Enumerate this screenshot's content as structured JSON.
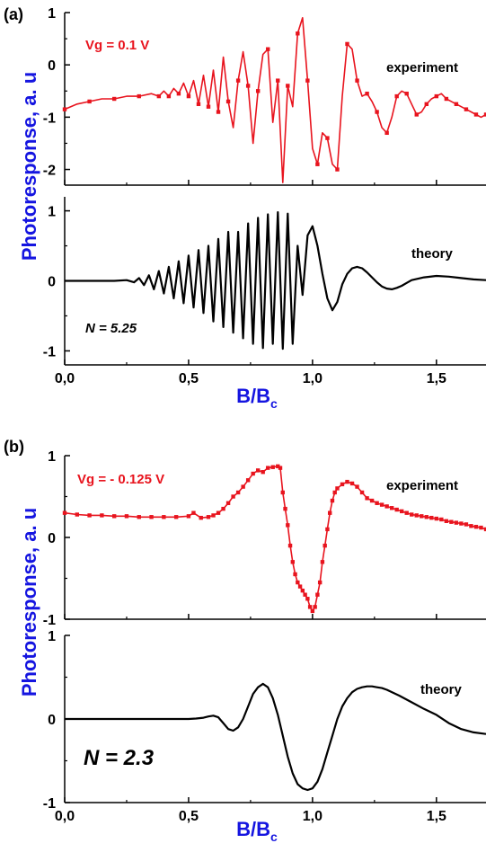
{
  "figure": {
    "ylabel": "Photoresponse, a. u",
    "xlabel_main": "B/B",
    "xlabel_sub": "c"
  },
  "colors": {
    "experiment": "#e8141e",
    "theory": "#000000",
    "axis_label": "#1515e0",
    "text": "#000000"
  },
  "chart_data": [
    {
      "id": "a-experiment",
      "type": "line",
      "panel_tag": "(a)",
      "label": "experiment",
      "annotation": "Vg = 0.1 V",
      "annotation_color": "#e8141e",
      "xlim": [
        0,
        1.7
      ],
      "ylim": [
        -2.3,
        1.0
      ],
      "y_ticks": [
        1,
        0,
        -1,
        -2
      ],
      "y_tick_labels": [
        "1",
        "0",
        "-1",
        "-2"
      ],
      "x_ticks": [
        0,
        0.5,
        1.0,
        1.5
      ],
      "show_x_tick_labels": false,
      "markers": true,
      "marker_step": 2,
      "series": [
        {
          "name": "experiment",
          "color": "#e8141e",
          "x": [
            0,
            0.05,
            0.1,
            0.15,
            0.2,
            0.25,
            0.3,
            0.35,
            0.38,
            0.4,
            0.42,
            0.44,
            0.46,
            0.48,
            0.5,
            0.52,
            0.54,
            0.56,
            0.58,
            0.6,
            0.62,
            0.64,
            0.66,
            0.68,
            0.7,
            0.72,
            0.74,
            0.76,
            0.78,
            0.8,
            0.82,
            0.84,
            0.86,
            0.88,
            0.9,
            0.92,
            0.94,
            0.96,
            0.98,
            1.0,
            1.02,
            1.04,
            1.06,
            1.08,
            1.1,
            1.12,
            1.14,
            1.16,
            1.18,
            1.2,
            1.22,
            1.24,
            1.26,
            1.28,
            1.3,
            1.32,
            1.34,
            1.36,
            1.38,
            1.4,
            1.42,
            1.44,
            1.46,
            1.48,
            1.5,
            1.52,
            1.54,
            1.56,
            1.58,
            1.6,
            1.62,
            1.64,
            1.66,
            1.68,
            1.7
          ],
          "y": [
            -0.85,
            -0.75,
            -0.7,
            -0.65,
            -0.65,
            -0.6,
            -0.6,
            -0.55,
            -0.6,
            -0.5,
            -0.6,
            -0.45,
            -0.55,
            -0.35,
            -0.6,
            -0.3,
            -0.75,
            -0.2,
            -0.8,
            -0.1,
            -0.9,
            0.15,
            -0.7,
            -1.2,
            -0.3,
            0.25,
            -0.4,
            -1.5,
            -0.5,
            0.2,
            0.3,
            -1.1,
            -0.3,
            -2.25,
            -0.4,
            -0.8,
            0.6,
            0.9,
            -0.3,
            -1.6,
            -1.9,
            -1.3,
            -1.4,
            -1.9,
            -2.0,
            -0.6,
            0.4,
            0.3,
            -0.3,
            -0.6,
            -0.55,
            -0.7,
            -0.9,
            -1.2,
            -1.3,
            -1.0,
            -0.6,
            -0.5,
            -0.55,
            -0.75,
            -0.95,
            -0.9,
            -0.75,
            -0.65,
            -0.6,
            -0.55,
            -0.65,
            -0.7,
            -0.75,
            -0.8,
            -0.85,
            -0.9,
            -0.95,
            -1.0,
            -0.95
          ]
        }
      ]
    },
    {
      "id": "a-theory",
      "type": "line",
      "label": "theory",
      "annotation": "N = 5.25",
      "annotation_color": "#000000",
      "xlim": [
        0,
        1.7
      ],
      "ylim": [
        -1.2,
        1.2
      ],
      "y_ticks": [
        1,
        0,
        -1
      ],
      "y_tick_labels": [
        "1",
        "0",
        "-1"
      ],
      "x_ticks": [
        0,
        0.5,
        1.0,
        1.5
      ],
      "x_tick_labels": [
        "0,0",
        "0,5",
        "1,0",
        "1,5"
      ],
      "show_x_tick_labels": true,
      "markers": false,
      "series": [
        {
          "name": "theory",
          "color": "#000000",
          "x": [
            0,
            0.05,
            0.1,
            0.15,
            0.2,
            0.25,
            0.28,
            0.3,
            0.32,
            0.34,
            0.36,
            0.38,
            0.4,
            0.42,
            0.44,
            0.46,
            0.48,
            0.5,
            0.52,
            0.54,
            0.56,
            0.58,
            0.6,
            0.62,
            0.64,
            0.66,
            0.68,
            0.7,
            0.72,
            0.74,
            0.76,
            0.78,
            0.8,
            0.82,
            0.84,
            0.86,
            0.88,
            0.9,
            0.92,
            0.94,
            0.96,
            0.98,
            1.0,
            1.02,
            1.04,
            1.06,
            1.08,
            1.1,
            1.12,
            1.14,
            1.16,
            1.18,
            1.2,
            1.22,
            1.24,
            1.26,
            1.28,
            1.3,
            1.32,
            1.34,
            1.36,
            1.38,
            1.4,
            1.45,
            1.5,
            1.55,
            1.6,
            1.65,
            1.7
          ],
          "y": [
            0,
            0,
            0,
            0,
            0,
            0.01,
            -0.02,
            0.04,
            -0.06,
            0.08,
            -0.12,
            0.14,
            -0.18,
            0.2,
            -0.25,
            0.28,
            -0.32,
            0.36,
            -0.38,
            0.44,
            -0.46,
            0.5,
            -0.58,
            0.6,
            -0.66,
            0.7,
            -0.74,
            0.7,
            -0.82,
            0.82,
            -0.9,
            0.9,
            -0.96,
            0.95,
            -0.9,
            0.98,
            -0.97,
            0.96,
            -0.9,
            0.5,
            -0.2,
            0.65,
            0.78,
            0.5,
            0.1,
            -0.25,
            -0.42,
            -0.3,
            -0.05,
            0.1,
            0.18,
            0.2,
            0.18,
            0.12,
            0.05,
            -0.02,
            -0.08,
            -0.11,
            -0.12,
            -0.1,
            -0.07,
            -0.03,
            0.01,
            0.05,
            0.07,
            0.06,
            0.04,
            0.02,
            0.01
          ]
        }
      ]
    },
    {
      "id": "b-experiment",
      "type": "line",
      "panel_tag": "(b)",
      "label": "experiment",
      "annotation": "Vg = - 0.125 V",
      "annotation_color": "#e8141e",
      "xlim": [
        0,
        1.7
      ],
      "ylim": [
        -1.0,
        1.0
      ],
      "y_ticks": [
        1,
        0,
        -1
      ],
      "y_tick_labels": [
        "1",
        "0",
        "-1"
      ],
      "x_ticks": [
        0,
        0.5,
        1.0,
        1.5
      ],
      "show_x_tick_labels": false,
      "markers": true,
      "marker_step": 1,
      "series": [
        {
          "name": "experiment",
          "color": "#e8141e",
          "x": [
            0,
            0.05,
            0.1,
            0.15,
            0.2,
            0.25,
            0.3,
            0.35,
            0.4,
            0.45,
            0.5,
            0.52,
            0.55,
            0.58,
            0.6,
            0.62,
            0.64,
            0.66,
            0.68,
            0.7,
            0.72,
            0.74,
            0.76,
            0.78,
            0.8,
            0.82,
            0.84,
            0.86,
            0.87,
            0.88,
            0.89,
            0.9,
            0.91,
            0.92,
            0.93,
            0.94,
            0.95,
            0.96,
            0.97,
            0.98,
            0.99,
            1.0,
            1.01,
            1.02,
            1.03,
            1.04,
            1.05,
            1.06,
            1.07,
            1.08,
            1.09,
            1.1,
            1.12,
            1.14,
            1.16,
            1.18,
            1.2,
            1.22,
            1.24,
            1.26,
            1.28,
            1.3,
            1.32,
            1.34,
            1.36,
            1.38,
            1.4,
            1.42,
            1.44,
            1.46,
            1.48,
            1.5,
            1.52,
            1.54,
            1.56,
            1.58,
            1.6,
            1.62,
            1.64,
            1.66,
            1.68,
            1.7
          ],
          "y": [
            0.3,
            0.28,
            0.27,
            0.27,
            0.26,
            0.26,
            0.25,
            0.25,
            0.25,
            0.25,
            0.26,
            0.3,
            0.24,
            0.25,
            0.27,
            0.3,
            0.35,
            0.42,
            0.5,
            0.55,
            0.62,
            0.7,
            0.78,
            0.82,
            0.8,
            0.85,
            0.86,
            0.87,
            0.85,
            0.55,
            0.35,
            0.15,
            -0.1,
            -0.3,
            -0.45,
            -0.55,
            -0.6,
            -0.65,
            -0.7,
            -0.75,
            -0.85,
            -0.9,
            -0.85,
            -0.7,
            -0.55,
            -0.3,
            -0.1,
            0.1,
            0.3,
            0.45,
            0.55,
            0.6,
            0.65,
            0.68,
            0.66,
            0.62,
            0.55,
            0.48,
            0.45,
            0.42,
            0.4,
            0.38,
            0.36,
            0.34,
            0.32,
            0.3,
            0.28,
            0.27,
            0.26,
            0.25,
            0.24,
            0.23,
            0.22,
            0.2,
            0.19,
            0.18,
            0.17,
            0.16,
            0.14,
            0.13,
            0.12,
            0.1
          ]
        }
      ]
    },
    {
      "id": "b-theory",
      "type": "line",
      "label": "theory",
      "annotation": "N = 2.3",
      "annotation_color": "#000000",
      "xlim": [
        0,
        1.7
      ],
      "ylim": [
        -1.0,
        1.0
      ],
      "y_ticks": [
        1,
        0,
        -1
      ],
      "y_tick_labels": [
        "1",
        "0",
        "-1"
      ],
      "x_ticks": [
        0,
        0.5,
        1.0,
        1.5
      ],
      "x_tick_labels": [
        "0,0",
        "0,5",
        "1,0",
        "1,5"
      ],
      "show_x_tick_labels": true,
      "markers": false,
      "series": [
        {
          "name": "theory",
          "color": "#000000",
          "x": [
            0,
            0.1,
            0.2,
            0.3,
            0.4,
            0.5,
            0.53,
            0.56,
            0.58,
            0.6,
            0.62,
            0.64,
            0.66,
            0.68,
            0.7,
            0.72,
            0.74,
            0.76,
            0.78,
            0.8,
            0.82,
            0.84,
            0.86,
            0.88,
            0.9,
            0.92,
            0.94,
            0.96,
            0.98,
            1.0,
            1.02,
            1.04,
            1.06,
            1.08,
            1.1,
            1.12,
            1.14,
            1.16,
            1.18,
            1.2,
            1.22,
            1.24,
            1.26,
            1.28,
            1.3,
            1.35,
            1.4,
            1.45,
            1.5,
            1.55,
            1.6,
            1.65,
            1.7
          ],
          "y": [
            0,
            0,
            0,
            0,
            0,
            0,
            0.005,
            0.015,
            0.03,
            0.04,
            0.02,
            -0.05,
            -0.12,
            -0.14,
            -0.1,
            0.0,
            0.15,
            0.3,
            0.38,
            0.42,
            0.38,
            0.25,
            0.05,
            -0.2,
            -0.45,
            -0.65,
            -0.78,
            -0.83,
            -0.85,
            -0.83,
            -0.75,
            -0.6,
            -0.4,
            -0.2,
            0.0,
            0.15,
            0.25,
            0.32,
            0.36,
            0.38,
            0.39,
            0.39,
            0.38,
            0.37,
            0.35,
            0.28,
            0.2,
            0.12,
            0.05,
            -0.05,
            -0.12,
            -0.16,
            -0.18
          ]
        }
      ]
    }
  ]
}
